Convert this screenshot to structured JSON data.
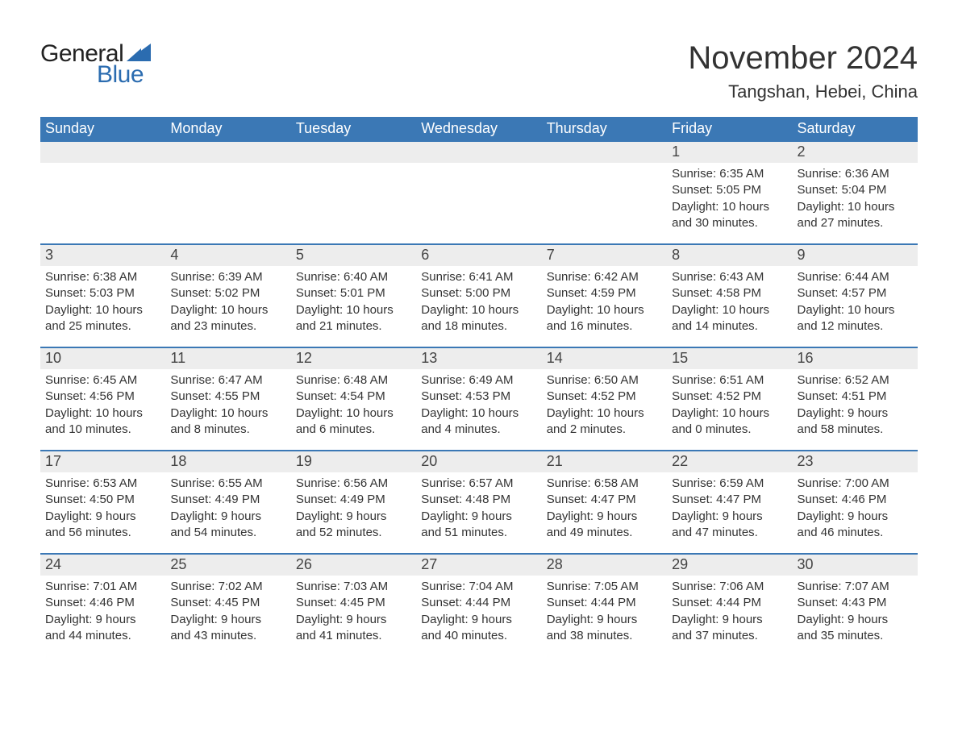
{
  "logo": {
    "text_general": "General",
    "text_blue": "Blue",
    "shape_color": "#2b6cb0",
    "general_color": "#222222",
    "blue_color": "#2b6cb0"
  },
  "title": {
    "month": "November 2024",
    "location": "Tangshan, Hebei, China",
    "month_fontsize": 40,
    "location_fontsize": 22,
    "text_color": "#333333"
  },
  "colors": {
    "header_bg": "#3b78b5",
    "header_text": "#ffffff",
    "daynum_bg": "#ededed",
    "daynum_text": "#444444",
    "body_text": "#333333",
    "week_divider": "#3b78b5",
    "page_bg": "#ffffff"
  },
  "layout": {
    "columns": 7,
    "header_fontsize": 18,
    "daynum_fontsize": 18,
    "body_fontsize": 15
  },
  "day_headers": [
    "Sunday",
    "Monday",
    "Tuesday",
    "Wednesday",
    "Thursday",
    "Friday",
    "Saturday"
  ],
  "weeks": [
    [
      {
        "day": "",
        "sunrise": "",
        "sunset": "",
        "daylight1": "",
        "daylight2": ""
      },
      {
        "day": "",
        "sunrise": "",
        "sunset": "",
        "daylight1": "",
        "daylight2": ""
      },
      {
        "day": "",
        "sunrise": "",
        "sunset": "",
        "daylight1": "",
        "daylight2": ""
      },
      {
        "day": "",
        "sunrise": "",
        "sunset": "",
        "daylight1": "",
        "daylight2": ""
      },
      {
        "day": "",
        "sunrise": "",
        "sunset": "",
        "daylight1": "",
        "daylight2": ""
      },
      {
        "day": "1",
        "sunrise": "Sunrise: 6:35 AM",
        "sunset": "Sunset: 5:05 PM",
        "daylight1": "Daylight: 10 hours",
        "daylight2": "and 30 minutes."
      },
      {
        "day": "2",
        "sunrise": "Sunrise: 6:36 AM",
        "sunset": "Sunset: 5:04 PM",
        "daylight1": "Daylight: 10 hours",
        "daylight2": "and 27 minutes."
      }
    ],
    [
      {
        "day": "3",
        "sunrise": "Sunrise: 6:38 AM",
        "sunset": "Sunset: 5:03 PM",
        "daylight1": "Daylight: 10 hours",
        "daylight2": "and 25 minutes."
      },
      {
        "day": "4",
        "sunrise": "Sunrise: 6:39 AM",
        "sunset": "Sunset: 5:02 PM",
        "daylight1": "Daylight: 10 hours",
        "daylight2": "and 23 minutes."
      },
      {
        "day": "5",
        "sunrise": "Sunrise: 6:40 AM",
        "sunset": "Sunset: 5:01 PM",
        "daylight1": "Daylight: 10 hours",
        "daylight2": "and 21 minutes."
      },
      {
        "day": "6",
        "sunrise": "Sunrise: 6:41 AM",
        "sunset": "Sunset: 5:00 PM",
        "daylight1": "Daylight: 10 hours",
        "daylight2": "and 18 minutes."
      },
      {
        "day": "7",
        "sunrise": "Sunrise: 6:42 AM",
        "sunset": "Sunset: 4:59 PM",
        "daylight1": "Daylight: 10 hours",
        "daylight2": "and 16 minutes."
      },
      {
        "day": "8",
        "sunrise": "Sunrise: 6:43 AM",
        "sunset": "Sunset: 4:58 PM",
        "daylight1": "Daylight: 10 hours",
        "daylight2": "and 14 minutes."
      },
      {
        "day": "9",
        "sunrise": "Sunrise: 6:44 AM",
        "sunset": "Sunset: 4:57 PM",
        "daylight1": "Daylight: 10 hours",
        "daylight2": "and 12 minutes."
      }
    ],
    [
      {
        "day": "10",
        "sunrise": "Sunrise: 6:45 AM",
        "sunset": "Sunset: 4:56 PM",
        "daylight1": "Daylight: 10 hours",
        "daylight2": "and 10 minutes."
      },
      {
        "day": "11",
        "sunrise": "Sunrise: 6:47 AM",
        "sunset": "Sunset: 4:55 PM",
        "daylight1": "Daylight: 10 hours",
        "daylight2": "and 8 minutes."
      },
      {
        "day": "12",
        "sunrise": "Sunrise: 6:48 AM",
        "sunset": "Sunset: 4:54 PM",
        "daylight1": "Daylight: 10 hours",
        "daylight2": "and 6 minutes."
      },
      {
        "day": "13",
        "sunrise": "Sunrise: 6:49 AM",
        "sunset": "Sunset: 4:53 PM",
        "daylight1": "Daylight: 10 hours",
        "daylight2": "and 4 minutes."
      },
      {
        "day": "14",
        "sunrise": "Sunrise: 6:50 AM",
        "sunset": "Sunset: 4:52 PM",
        "daylight1": "Daylight: 10 hours",
        "daylight2": "and 2 minutes."
      },
      {
        "day": "15",
        "sunrise": "Sunrise: 6:51 AM",
        "sunset": "Sunset: 4:52 PM",
        "daylight1": "Daylight: 10 hours",
        "daylight2": "and 0 minutes."
      },
      {
        "day": "16",
        "sunrise": "Sunrise: 6:52 AM",
        "sunset": "Sunset: 4:51 PM",
        "daylight1": "Daylight: 9 hours",
        "daylight2": "and 58 minutes."
      }
    ],
    [
      {
        "day": "17",
        "sunrise": "Sunrise: 6:53 AM",
        "sunset": "Sunset: 4:50 PM",
        "daylight1": "Daylight: 9 hours",
        "daylight2": "and 56 minutes."
      },
      {
        "day": "18",
        "sunrise": "Sunrise: 6:55 AM",
        "sunset": "Sunset: 4:49 PM",
        "daylight1": "Daylight: 9 hours",
        "daylight2": "and 54 minutes."
      },
      {
        "day": "19",
        "sunrise": "Sunrise: 6:56 AM",
        "sunset": "Sunset: 4:49 PM",
        "daylight1": "Daylight: 9 hours",
        "daylight2": "and 52 minutes."
      },
      {
        "day": "20",
        "sunrise": "Sunrise: 6:57 AM",
        "sunset": "Sunset: 4:48 PM",
        "daylight1": "Daylight: 9 hours",
        "daylight2": "and 51 minutes."
      },
      {
        "day": "21",
        "sunrise": "Sunrise: 6:58 AM",
        "sunset": "Sunset: 4:47 PM",
        "daylight1": "Daylight: 9 hours",
        "daylight2": "and 49 minutes."
      },
      {
        "day": "22",
        "sunrise": "Sunrise: 6:59 AM",
        "sunset": "Sunset: 4:47 PM",
        "daylight1": "Daylight: 9 hours",
        "daylight2": "and 47 minutes."
      },
      {
        "day": "23",
        "sunrise": "Sunrise: 7:00 AM",
        "sunset": "Sunset: 4:46 PM",
        "daylight1": "Daylight: 9 hours",
        "daylight2": "and 46 minutes."
      }
    ],
    [
      {
        "day": "24",
        "sunrise": "Sunrise: 7:01 AM",
        "sunset": "Sunset: 4:46 PM",
        "daylight1": "Daylight: 9 hours",
        "daylight2": "and 44 minutes."
      },
      {
        "day": "25",
        "sunrise": "Sunrise: 7:02 AM",
        "sunset": "Sunset: 4:45 PM",
        "daylight1": "Daylight: 9 hours",
        "daylight2": "and 43 minutes."
      },
      {
        "day": "26",
        "sunrise": "Sunrise: 7:03 AM",
        "sunset": "Sunset: 4:45 PM",
        "daylight1": "Daylight: 9 hours",
        "daylight2": "and 41 minutes."
      },
      {
        "day": "27",
        "sunrise": "Sunrise: 7:04 AM",
        "sunset": "Sunset: 4:44 PM",
        "daylight1": "Daylight: 9 hours",
        "daylight2": "and 40 minutes."
      },
      {
        "day": "28",
        "sunrise": "Sunrise: 7:05 AM",
        "sunset": "Sunset: 4:44 PM",
        "daylight1": "Daylight: 9 hours",
        "daylight2": "and 38 minutes."
      },
      {
        "day": "29",
        "sunrise": "Sunrise: 7:06 AM",
        "sunset": "Sunset: 4:44 PM",
        "daylight1": "Daylight: 9 hours",
        "daylight2": "and 37 minutes."
      },
      {
        "day": "30",
        "sunrise": "Sunrise: 7:07 AM",
        "sunset": "Sunset: 4:43 PM",
        "daylight1": "Daylight: 9 hours",
        "daylight2": "and 35 minutes."
      }
    ]
  ]
}
